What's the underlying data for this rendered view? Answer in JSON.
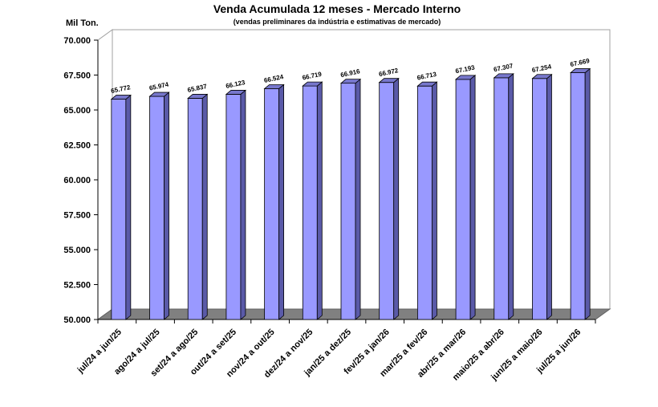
{
  "chart_data": {
    "type": "bar",
    "title": "Venda Acumulada 12 meses -  Mercado Interno",
    "subtitle": "(vendas preliminares da indústria e estimativas de mercado)",
    "ylabel": "Mil Ton.",
    "xlabel": "",
    "ylim": [
      50000,
      70000
    ],
    "yticks": [
      50000,
      52500,
      55000,
      57500,
      60000,
      62500,
      65000,
      67500,
      70000
    ],
    "ytick_labels": [
      "50.000",
      "52.500",
      "55.000",
      "57.500",
      "60.000",
      "62.500",
      "65.000",
      "67.500",
      "70.000"
    ],
    "categories": [
      "jul/24 a jun/25",
      "ago/24 a jul/25",
      "set/24 a ago/25",
      "out/24 a set/25",
      "nov/24 a out/25",
      "dez/24 a nov/25",
      "jan/25 a dez/25",
      "fev/25 a jan/26",
      "mar/25 a fev/26",
      "abr/25 a mar/26",
      "maio/25 a abr/26",
      "jun/25 a maio/26",
      "jul/25 a jun/26"
    ],
    "values": [
      65772,
      65974,
      65837,
      66123,
      66524,
      66719,
      66916,
      66972,
      66713,
      67193,
      67307,
      67254,
      67669
    ],
    "value_labels": [
      "65.772",
      "65.974",
      "65.837",
      "66.123",
      "66.524",
      "66.719",
      "66.916",
      "66.972",
      "66.713",
      "67.193",
      "67.307",
      "67.254",
      "67.669"
    ],
    "colors": {
      "bar_front": "#9999ff",
      "bar_side": "#5a5aa8",
      "bar_top": "#7777cc",
      "floor": "#808080",
      "wall": "#ffffff",
      "axis": "#000000"
    },
    "grid": false,
    "legend": "none"
  }
}
